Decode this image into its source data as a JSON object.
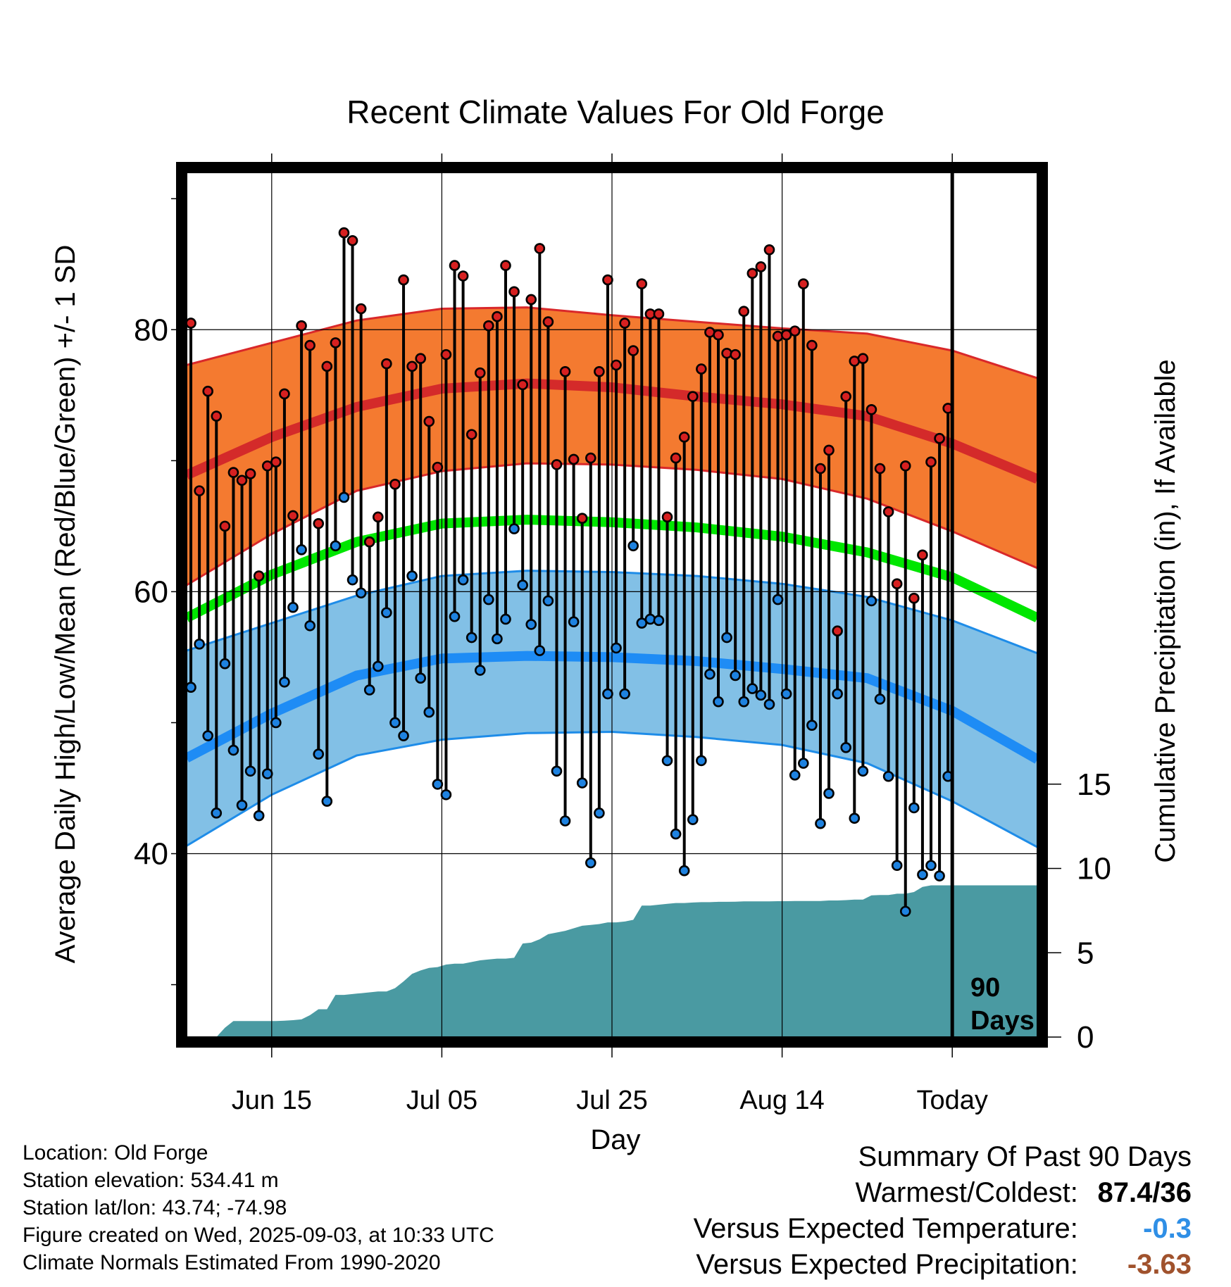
{
  "chart_data": {
    "type": "line",
    "title": "Recent Climate Values For Old Forge",
    "xlabel": "Day",
    "ylabel": "Average Daily High/Low/Mean (Red/Blue/Green) +/- 1 SD",
    "ylabel2": "Cumulative Precipitation (in), If Available",
    "x_ticks": [
      "Jun 15",
      "Jul 05",
      "Jul 25",
      "Aug 14",
      "Today"
    ],
    "x_tick_days": [
      10,
      30,
      50,
      70,
      90
    ],
    "xlim": [
      0,
      100
    ],
    "ylim": [
      26,
      92
    ],
    "y_ticks": [
      40,
      60,
      80
    ],
    "y2lim": [
      0,
      20
    ],
    "y2_ticks": [
      0,
      5,
      10,
      15
    ],
    "today_label": "90\nDays",
    "today_day": 90,
    "normals": {
      "days": [
        0,
        10,
        20,
        30,
        40,
        50,
        60,
        70,
        80,
        90,
        100
      ],
      "high_mean": [
        68.9,
        71.8,
        74.1,
        75.5,
        75.9,
        75.6,
        74.9,
        74.3,
        73.4,
        71.3,
        68.6
      ],
      "high_upper": [
        77.3,
        79.0,
        80.7,
        81.6,
        81.7,
        81.1,
        80.6,
        80.1,
        79.7,
        78.4,
        76.3
      ],
      "high_lower": [
        60.5,
        64.4,
        67.7,
        69.2,
        69.8,
        69.7,
        69.3,
        68.6,
        67.1,
        64.6,
        61.8
      ],
      "low_mean": [
        47.3,
        50.7,
        53.6,
        54.9,
        55.1,
        55.0,
        54.7,
        54.1,
        53.4,
        50.9,
        47.2
      ],
      "low_upper": [
        55.5,
        57.6,
        59.7,
        61.2,
        61.6,
        61.5,
        61.2,
        60.6,
        59.6,
        57.8,
        55.3
      ],
      "low_lower": [
        40.6,
        44.5,
        47.5,
        48.7,
        49.2,
        49.3,
        48.9,
        48.3,
        46.9,
        44.0,
        40.5
      ],
      "mean": [
        58.0,
        61.3,
        63.8,
        65.2,
        65.5,
        65.3,
        64.9,
        64.2,
        63.0,
        61.1,
        58.0
      ]
    },
    "daily_high": [
      80.5,
      67.7,
      75.3,
      73.4,
      65.0,
      69.1,
      68.5,
      69.0,
      61.2,
      69.6,
      69.9,
      75.1,
      65.8,
      80.3,
      78.8,
      65.2,
      77.2,
      79.0,
      87.4,
      86.8,
      81.6,
      63.8,
      65.7,
      77.4,
      68.2,
      83.8,
      77.2,
      77.8,
      73.0,
      69.5,
      78.1,
      84.9,
      84.1,
      72.0,
      76.7,
      80.3,
      81.0,
      84.9,
      82.9,
      75.8,
      82.3,
      86.2,
      80.6,
      69.7,
      76.8,
      70.1,
      65.6,
      70.2,
      76.8,
      83.8,
      77.3,
      80.5,
      78.4,
      83.5,
      81.2,
      81.2,
      65.7,
      70.2,
      71.8,
      74.9,
      77.0,
      79.8,
      79.6,
      78.2,
      78.1,
      81.4,
      84.3,
      84.8,
      86.1,
      79.5,
      79.6,
      79.9,
      83.5,
      78.8,
      69.4,
      70.8,
      57.0,
      74.9,
      77.6,
      77.8,
      73.9,
      69.4,
      66.1,
      60.6,
      69.6,
      59.5,
      62.8,
      69.9,
      71.7,
      74.0
    ],
    "daily_low": [
      52.7,
      56.0,
      49.0,
      43.1,
      54.5,
      47.9,
      43.7,
      46.3,
      42.9,
      46.1,
      50.0,
      53.1,
      58.8,
      63.2,
      57.4,
      47.6,
      44.0,
      63.5,
      67.2,
      60.9,
      59.9,
      52.5,
      54.3,
      58.4,
      50.0,
      49.0,
      61.2,
      53.4,
      50.8,
      45.3,
      44.5,
      58.1,
      60.9,
      56.5,
      54.0,
      59.4,
      56.4,
      57.9,
      64.8,
      60.5,
      57.5,
      55.5,
      59.3,
      46.3,
      42.5,
      57.7,
      45.4,
      39.3,
      43.1,
      52.2,
      55.7,
      52.2,
      63.5,
      57.6,
      57.9,
      57.8,
      47.1,
      41.5,
      38.7,
      42.6,
      47.1,
      53.7,
      51.6,
      56.5,
      53.6,
      51.6,
      52.6,
      52.1,
      51.4,
      59.4,
      52.2,
      46.0,
      46.9,
      49.8,
      42.3,
      44.6,
      52.2,
      48.1,
      42.7,
      46.3,
      59.3,
      51.8,
      45.9,
      39.1,
      35.6,
      43.5,
      38.4,
      39.1,
      38.3,
      45.9
    ],
    "cumulative_precip": [
      0,
      0,
      0,
      0,
      0.55,
      0.95,
      0.95,
      0.95,
      0.95,
      0.95,
      0.95,
      0.97,
      1.0,
      1.05,
      1.3,
      1.65,
      1.65,
      2.5,
      2.5,
      2.55,
      2.6,
      2.65,
      2.7,
      2.7,
      2.9,
      3.3,
      3.75,
      3.95,
      4.1,
      4.15,
      4.3,
      4.35,
      4.35,
      4.45,
      4.55,
      4.6,
      4.65,
      4.65,
      4.7,
      5.55,
      5.6,
      5.8,
      6.1,
      6.2,
      6.3,
      6.45,
      6.6,
      6.65,
      6.7,
      6.8,
      6.8,
      6.85,
      6.95,
      7.8,
      7.8,
      7.85,
      7.9,
      7.95,
      7.95,
      7.98,
      8.0,
      8.0,
      8.02,
      8.02,
      8.03,
      8.05,
      8.05,
      8.05,
      8.05,
      8.06,
      8.06,
      8.07,
      8.07,
      8.07,
      8.07,
      8.1,
      8.1,
      8.12,
      8.15,
      8.15,
      8.4,
      8.42,
      8.42,
      8.5,
      8.5,
      8.6,
      8.9,
      9.0,
      9.0,
      9.0
    ],
    "grid": true,
    "colors": {
      "high_band": "#f47a30",
      "high_band_edge": "#d9282a",
      "high_mean": "#d42a2a",
      "low_band": "#82c0e6",
      "low_band_edge": "#1e8ce8",
      "low_mean": "#1e8cf5",
      "mean": "#00e600",
      "precip": "#4a9aa2",
      "high_dot": "#d62020",
      "low_dot": "#1e82e0"
    }
  },
  "footer": {
    "lines": [
      "Location: Old Forge",
      "Station elevation: 534.41 m",
      "Station lat/lon: 43.74; -74.98",
      "Figure created on Wed, 2025-09-03, at 10:33 UTC",
      "Climate Normals Estimated From 1990-2020"
    ]
  },
  "summary": {
    "title": "Summary Of Past 90 Days",
    "warmest_coldest_label": "Warmest/Coldest:",
    "warmest_coldest_value": "87.4/36",
    "temp_label": "Versus Expected Temperature:",
    "temp_value": "-0.3",
    "temp_color": "#2f8fe6",
    "precip_label": "Versus Expected Precipitation:",
    "precip_value": "-3.63",
    "precip_color": "#a0522d"
  }
}
